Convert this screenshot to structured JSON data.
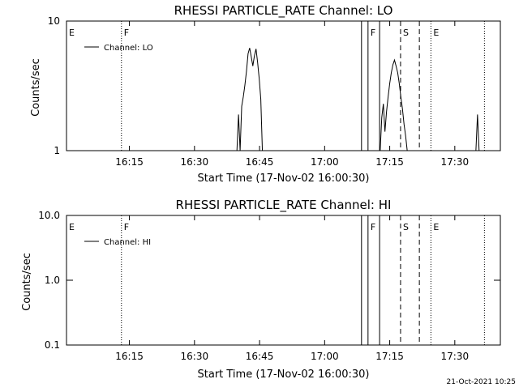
{
  "footer": {
    "timestamp": "21-Oct-2021 10:25"
  },
  "chart_data": [
    {
      "type": "line",
      "title": "RHESSI PARTICLE_RATE Channel: LO",
      "xlabel": "Start Time (17-Nov-02 16:00:30)",
      "ylabel": "Counts/sec",
      "y_scale": "log",
      "ylim": [
        1,
        10
      ],
      "y_ticks": [
        {
          "value": 1,
          "label": "1"
        },
        {
          "value": 10,
          "label": "10"
        }
      ],
      "xlim": [
        "16:00:30",
        "17:40:30"
      ],
      "x_ticks": [
        {
          "value": "16:15",
          "label": "16:15"
        },
        {
          "value": "16:30",
          "label": "16:30"
        },
        {
          "value": "16:45",
          "label": "16:45"
        },
        {
          "value": "17:00",
          "label": "17:00"
        },
        {
          "value": "17:15",
          "label": "17:15"
        },
        {
          "value": "17:30",
          "label": "17:30"
        }
      ],
      "legend": {
        "placement": "top-left",
        "entries": [
          "Channel: LO"
        ]
      },
      "series": [
        {
          "name": "Channel: LO",
          "points": [
            {
              "x": "16:39:47",
              "y": 1.0
            },
            {
              "x": "16:40:09",
              "y": 1.9
            },
            {
              "x": "16:40:31",
              "y": 1.0
            },
            {
              "x": "16:40:53",
              "y": 2.2
            },
            {
              "x": "16:41:15",
              "y": 2.6
            },
            {
              "x": "16:41:37",
              "y": 3.2
            },
            {
              "x": "16:41:59",
              "y": 4.1
            },
            {
              "x": "16:42:21",
              "y": 5.6
            },
            {
              "x": "16:42:43",
              "y": 6.2
            },
            {
              "x": "16:43:05",
              "y": 5.3
            },
            {
              "x": "16:43:27",
              "y": 4.5
            },
            {
              "x": "16:43:49",
              "y": 5.4
            },
            {
              "x": "16:44:11",
              "y": 6.1
            },
            {
              "x": "16:44:33",
              "y": 4.8
            },
            {
              "x": "16:44:55",
              "y": 3.6
            },
            {
              "x": "16:45:17",
              "y": 2.5
            },
            {
              "x": "16:45:39",
              "y": 1.0
            },
            {
              "x": "17:12:48",
              "y": 1.0
            },
            {
              "x": "17:13:10",
              "y": 1.8
            },
            {
              "x": "17:13:32",
              "y": 2.3
            },
            {
              "x": "17:13:54",
              "y": 1.4
            },
            {
              "x": "17:14:16",
              "y": 2.0
            },
            {
              "x": "17:14:38",
              "y": 2.6
            },
            {
              "x": "17:15:00",
              "y": 3.3
            },
            {
              "x": "17:15:22",
              "y": 4.0
            },
            {
              "x": "17:15:44",
              "y": 4.6
            },
            {
              "x": "17:16:06",
              "y": 5.0
            },
            {
              "x": "17:16:28",
              "y": 4.5
            },
            {
              "x": "17:16:50",
              "y": 4.0
            },
            {
              "x": "17:17:12",
              "y": 3.3
            },
            {
              "x": "17:17:34",
              "y": 2.6
            },
            {
              "x": "17:17:56",
              "y": 2.1
            },
            {
              "x": "17:18:18",
              "y": 1.6
            },
            {
              "x": "17:18:40",
              "y": 1.3
            },
            {
              "x": "17:19:02",
              "y": 1.0
            },
            {
              "x": "17:34:52",
              "y": 1.0
            },
            {
              "x": "17:35:14",
              "y": 1.9
            },
            {
              "x": "17:35:36",
              "y": 1.0
            }
          ]
        }
      ],
      "markers": [
        {
          "label": "E",
          "time": "16:00:30",
          "style": "dotted"
        },
        {
          "label": "F",
          "time": "16:13:10",
          "style": "dotted"
        },
        {
          "label": "",
          "time": "17:08:30",
          "style": "solid"
        },
        {
          "label": "F",
          "time": "17:10:00",
          "style": "solid"
        },
        {
          "label": "",
          "time": "17:12:40",
          "style": "solid"
        },
        {
          "label": "S",
          "time": "17:17:30",
          "style": "dashed"
        },
        {
          "label": "",
          "time": "17:21:50",
          "style": "dashed"
        },
        {
          "label": "E",
          "time": "17:24:30",
          "style": "dotted"
        },
        {
          "label": "",
          "time": "17:36:50",
          "style": "dotted"
        }
      ]
    },
    {
      "type": "line",
      "title": "RHESSI PARTICLE_RATE Channel: HI",
      "xlabel": "Start Time (17-Nov-02 16:00:30)",
      "ylabel": "Counts/sec",
      "y_scale": "log",
      "ylim": [
        0.1,
        10
      ],
      "y_ticks": [
        {
          "value": 0.1,
          "label": "0.1"
        },
        {
          "value": 1,
          "label": "1.0"
        },
        {
          "value": 10,
          "label": "10.0"
        }
      ],
      "xlim": [
        "16:00:30",
        "17:40:30"
      ],
      "x_ticks": [
        {
          "value": "16:15",
          "label": "16:15"
        },
        {
          "value": "16:30",
          "label": "16:30"
        },
        {
          "value": "16:45",
          "label": "16:45"
        },
        {
          "value": "17:00",
          "label": "17:00"
        },
        {
          "value": "17:15",
          "label": "17:15"
        },
        {
          "value": "17:30",
          "label": "17:30"
        }
      ],
      "legend": {
        "placement": "top-left",
        "entries": [
          "Channel: HI"
        ]
      },
      "series": [
        {
          "name": "Channel: HI",
          "points": []
        }
      ],
      "markers": [
        {
          "label": "E",
          "time": "16:00:30",
          "style": "dotted"
        },
        {
          "label": "F",
          "time": "16:13:10",
          "style": "dotted"
        },
        {
          "label": "",
          "time": "17:08:30",
          "style": "solid"
        },
        {
          "label": "F",
          "time": "17:10:00",
          "style": "solid"
        },
        {
          "label": "",
          "time": "17:12:40",
          "style": "solid"
        },
        {
          "label": "S",
          "time": "17:17:30",
          "style": "dashed"
        },
        {
          "label": "",
          "time": "17:21:50",
          "style": "dashed"
        },
        {
          "label": "E",
          "time": "17:24:30",
          "style": "dotted"
        },
        {
          "label": "",
          "time": "17:36:50",
          "style": "dotted"
        }
      ]
    }
  ]
}
